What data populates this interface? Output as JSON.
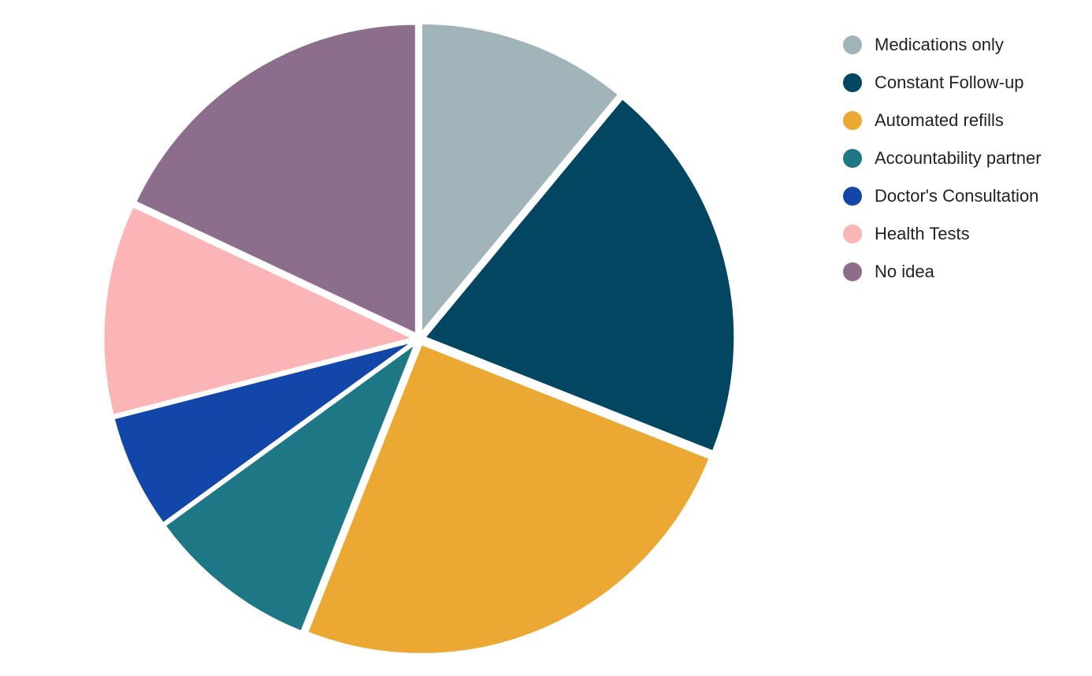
{
  "chart_data": {
    "type": "pie",
    "categories": [
      "Medications only",
      "Constant Follow-up",
      "Automated refills",
      "Accountability partner",
      "Doctor's Consultation",
      "Health Tests",
      "No idea"
    ],
    "values": [
      11,
      20,
      25,
      9,
      6,
      11,
      18
    ],
    "colors": [
      "#a0b4b9",
      "#024661",
      "#eba933",
      "#1e7785",
      "#1246a9",
      "#fbb5b6",
      "#8d6d8c"
    ],
    "legend": "top-right"
  }
}
